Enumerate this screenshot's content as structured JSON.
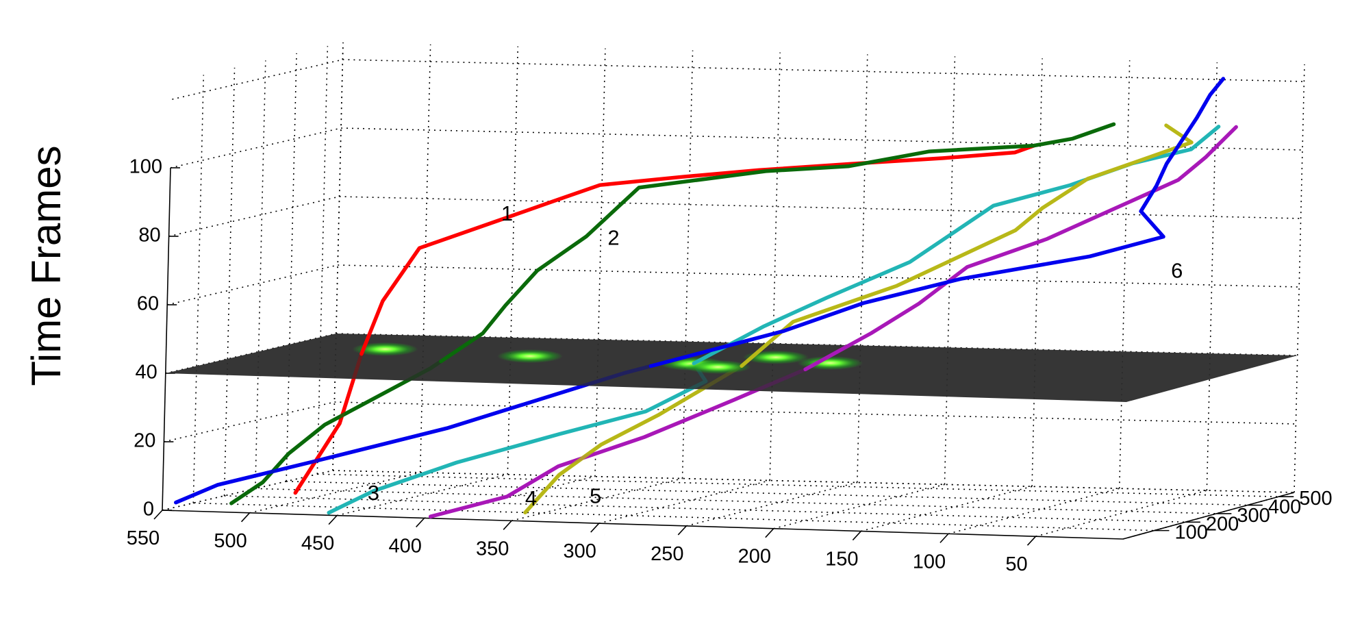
{
  "chart_data": {
    "type": "line",
    "projection": "3d",
    "title": "",
    "xlabel": "",
    "ylabel": "",
    "zlabel": "Time Frames",
    "xlim": [
      0,
      550
    ],
    "ylim": [
      0,
      550
    ],
    "zlim": [
      0,
      100
    ],
    "grid": true,
    "x_ticks": [
      550,
      500,
      450,
      400,
      350,
      300,
      250,
      200,
      150,
      100,
      50
    ],
    "y_ticks": [
      100,
      200,
      300,
      400,
      500
    ],
    "z_ticks": [
      0,
      20,
      40,
      60,
      80,
      100
    ],
    "plane": {
      "z": 40,
      "color": "#2b2b2b"
    },
    "detections": [
      {
        "x": 490,
        "y": 370
      },
      {
        "x": 400,
        "y": 330
      },
      {
        "x": 270,
        "y": 390
      },
      {
        "x": 300,
        "y": 290
      },
      {
        "x": 280,
        "y": 260
      },
      {
        "x": 230,
        "y": 340
      }
    ],
    "series": [
      {
        "label": "1",
        "color": "#ff0000",
        "label_point": [
          408,
          290,
          82
        ],
        "points": [
          [
            520,
            260,
            0
          ],
          [
            500,
            285,
            20
          ],
          [
            492,
            305,
            40
          ],
          [
            485,
            330,
            55
          ],
          [
            470,
            360,
            70
          ],
          [
            430,
            390,
            78
          ],
          [
            400,
            410,
            84
          ],
          [
            380,
            430,
            88
          ],
          [
            340,
            470,
            90
          ],
          [
            300,
            490,
            92
          ],
          [
            250,
            510,
            94
          ],
          [
            200,
            520,
            96
          ],
          [
            160,
            525,
            98
          ],
          [
            150,
            530,
            100
          ]
        ]
      },
      {
        "label": "2",
        "color": "#0a6a0a",
        "label_point": [
          345,
          280,
          76
        ],
        "points": [
          [
            530,
            110,
            0
          ],
          [
            515,
            125,
            6
          ],
          [
            505,
            150,
            14
          ],
          [
            490,
            180,
            22
          ],
          [
            440,
            235,
            38
          ],
          [
            415,
            260,
            48
          ],
          [
            405,
            275,
            56
          ],
          [
            390,
            290,
            66
          ],
          [
            365,
            305,
            76
          ],
          [
            340,
            330,
            90
          ],
          [
            280,
            400,
            94
          ],
          [
            240,
            440,
            95
          ],
          [
            200,
            475,
            99
          ],
          [
            150,
            530,
            100
          ],
          [
            130,
            540,
            102
          ],
          [
            110,
            560,
            106
          ]
        ]
      },
      {
        "label": "3",
        "color": "#22b5b5",
        "label_point": [
          440,
          60,
          5
        ],
        "points": [
          [
            460,
            30,
            0
          ],
          [
            440,
            60,
            6
          ],
          [
            400,
            100,
            14
          ],
          [
            350,
            150,
            22
          ],
          [
            310,
            200,
            28
          ],
          [
            285,
            250,
            36
          ],
          [
            300,
            295,
            40
          ],
          [
            270,
            350,
            50
          ],
          [
            240,
            380,
            58
          ],
          [
            200,
            420,
            68
          ],
          [
            180,
            440,
            76
          ],
          [
            160,
            460,
            84
          ],
          [
            120,
            480,
            90
          ],
          [
            90,
            510,
            96
          ],
          [
            60,
            530,
            100
          ],
          [
            50,
            560,
            106
          ]
        ]
      },
      {
        "label": "4",
        "color": "#a818b8",
        "label_point": [
          348,
          50,
          5
        ],
        "points": [
          [
            400,
            20,
            0
          ],
          [
            360,
            40,
            6
          ],
          [
            340,
            90,
            14
          ],
          [
            300,
            140,
            22
          ],
          [
            260,
            200,
            32
          ],
          [
            230,
            260,
            40
          ],
          [
            200,
            300,
            50
          ],
          [
            180,
            340,
            58
          ],
          [
            160,
            380,
            68
          ],
          [
            120,
            410,
            76
          ],
          [
            90,
            450,
            84
          ],
          [
            60,
            490,
            92
          ],
          [
            50,
            520,
            98
          ],
          [
            40,
            560,
            106
          ]
        ]
      },
      {
        "label": "5",
        "color": "#b8b818",
        "label_point": [
          320,
          100,
          5
        ],
        "points": [
          [
            360,
            100,
            0
          ],
          [
            350,
            150,
            10
          ],
          [
            335,
            200,
            18
          ],
          [
            310,
            240,
            26
          ],
          [
            270,
            280,
            40
          ],
          [
            250,
            330,
            52
          ],
          [
            200,
            380,
            62
          ],
          [
            170,
            400,
            70
          ],
          [
            140,
            420,
            78
          ],
          [
            130,
            450,
            84
          ],
          [
            110,
            480,
            92
          ],
          [
            80,
            510,
            98
          ],
          [
            60,
            530,
            102
          ],
          [
            80,
            560,
            106
          ]
        ]
      },
      {
        "label": "6",
        "color": "#0000ee",
        "label_point": [
          40,
          380,
          68
        ],
        "points": [
          [
            560,
            100,
            0
          ],
          [
            540,
            120,
            5
          ],
          [
            490,
            150,
            12
          ],
          [
            420,
            180,
            22
          ],
          [
            330,
            240,
            38
          ],
          [
            250,
            300,
            50
          ],
          [
            210,
            330,
            58
          ],
          [
            160,
            360,
            65
          ],
          [
            90,
            380,
            72
          ],
          [
            50,
            390,
            78
          ],
          [
            65,
            400,
            85
          ],
          [
            60,
            420,
            92
          ],
          [
            58,
            440,
            98
          ],
          [
            55,
            470,
            104
          ],
          [
            52,
            500,
            110
          ],
          [
            50,
            530,
            116
          ],
          [
            48,
            560,
            120
          ]
        ]
      }
    ]
  }
}
